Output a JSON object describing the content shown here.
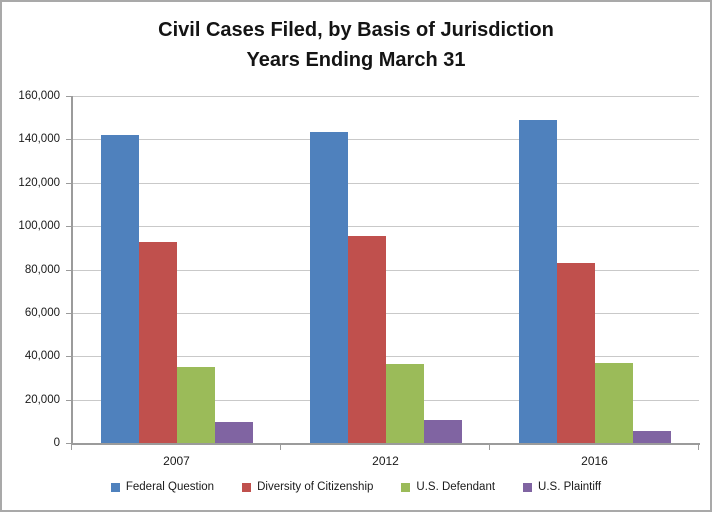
{
  "title": {
    "line1": "Civil Cases Filed, by Basis of Jurisdiction",
    "line2": "Years Ending March 31"
  },
  "chart_data": {
    "type": "bar",
    "title": "Civil Cases Filed, by Basis of Jurisdiction Years Ending March 31",
    "categories": [
      "2007",
      "2012",
      "2016"
    ],
    "series": [
      {
        "name": "Federal Question",
        "color": "#4F81BD",
        "values": [
          142000,
          143500,
          149000
        ]
      },
      {
        "name": "Diversity of Citizenship",
        "color": "#C0504D",
        "values": [
          92500,
          95500,
          83000
        ]
      },
      {
        "name": "U.S. Defendant",
        "color": "#9BBB59",
        "values": [
          35000,
          36500,
          37000
        ]
      },
      {
        "name": "U.S. Plaintiff",
        "color": "#8064A2",
        "values": [
          9500,
          10500,
          5500
        ]
      }
    ],
    "xlabel": "",
    "ylabel": "",
    "ylim": [
      0,
      160000
    ],
    "ytick_step": 20000,
    "ytick_labels": [
      "0",
      "20,000",
      "40,000",
      "60,000",
      "80,000",
      "100,000",
      "120,000",
      "140,000",
      "160,000"
    ],
    "grid": "horizontal",
    "legend_position": "bottom"
  },
  "colors": {
    "gridline": "#C9C9C9",
    "axis": "#9B9B9B",
    "title_text": "#141414",
    "label_text": "#1A1A1A",
    "frame_border": "#A9A9A9"
  }
}
